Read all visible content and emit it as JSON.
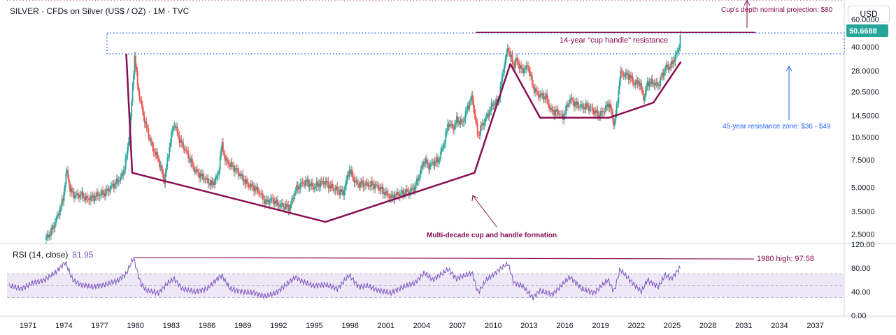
{
  "header": {
    "title": "SILVER · CFDs on Silver (US$ / OZ) · 1M · TVC",
    "currency_button": "USD"
  },
  "colors": {
    "up": "#26a69a",
    "down": "#ef5350",
    "pattern": "#880e4f",
    "zone": "#2962ff",
    "rsi": "#7e57c2",
    "rsi_band": "#ede7f6",
    "price_tag_bg": "#26a69a"
  },
  "chart_data": [
    {
      "type": "candlestick",
      "title": "SILVER · CFDs on Silver (US$ / OZ) · 1M · TVC",
      "scale": "log",
      "ylim": [
        2.2,
        75
      ],
      "xlim": [
        1969.3,
        2039.5
      ],
      "x_tick_labels": [
        "1971",
        "1974",
        "1977",
        "1980",
        "1983",
        "1986",
        "1989",
        "1992",
        "1995",
        "1998",
        "2001",
        "2004",
        "2007",
        "2010",
        "2013",
        "2016",
        "2019",
        "2022",
        "2025",
        "2028",
        "2031",
        "2034",
        "2037"
      ],
      "y_tick_labels": [
        "60.0000",
        "40.0000",
        "28.0000",
        "20.5000",
        "14.5000",
        "10.5000",
        "7.5000",
        "5.0000",
        "3.5000",
        "2.5000"
      ],
      "current_price": "50.6688",
      "price_path": [
        [
          1972.5,
          2.3
        ],
        [
          1973.0,
          2.6
        ],
        [
          1973.5,
          3.2
        ],
        [
          1974.0,
          4.2
        ],
        [
          1974.3,
          6.5
        ],
        [
          1974.6,
          4.8
        ],
        [
          1975.0,
          4.4
        ],
        [
          1975.5,
          4.5
        ],
        [
          1976.0,
          4.2
        ],
        [
          1976.5,
          4.3
        ],
        [
          1977.0,
          4.5
        ],
        [
          1977.5,
          4.6
        ],
        [
          1978.0,
          5.0
        ],
        [
          1978.5,
          5.4
        ],
        [
          1979.0,
          6.0
        ],
        [
          1979.4,
          8.5
        ],
        [
          1979.7,
          15.0
        ],
        [
          1980.0,
          35.0
        ],
        [
          1980.3,
          21.0
        ],
        [
          1980.7,
          15.0
        ],
        [
          1981.0,
          12.0
        ],
        [
          1981.5,
          9.0
        ],
        [
          1982.0,
          7.5
        ],
        [
          1982.5,
          5.5
        ],
        [
          1983.0,
          10.0
        ],
        [
          1983.3,
          13.0
        ],
        [
          1983.8,
          10.0
        ],
        [
          1984.5,
          8.0
        ],
        [
          1985.0,
          6.5
        ],
        [
          1985.5,
          6.0
        ],
        [
          1986.0,
          5.6
        ],
        [
          1986.5,
          5.2
        ],
        [
          1987.0,
          6.0
        ],
        [
          1987.3,
          9.5
        ],
        [
          1987.6,
          7.5
        ],
        [
          1988.0,
          7.0
        ],
        [
          1988.5,
          6.5
        ],
        [
          1989.0,
          5.8
        ],
        [
          1989.5,
          5.2
        ],
        [
          1990.0,
          5.0
        ],
        [
          1990.5,
          4.6
        ],
        [
          1991.0,
          4.0
        ],
        [
          1991.5,
          4.2
        ],
        [
          1992.0,
          3.9
        ],
        [
          1992.5,
          3.8
        ],
        [
          1993.0,
          3.7
        ],
        [
          1993.5,
          4.8
        ],
        [
          1994.0,
          5.3
        ],
        [
          1994.5,
          5.4
        ],
        [
          1995.0,
          5.0
        ],
        [
          1995.5,
          5.3
        ],
        [
          1996.0,
          5.4
        ],
        [
          1996.5,
          5.0
        ],
        [
          1997.0,
          4.8
        ],
        [
          1997.5,
          4.6
        ],
        [
          1998.0,
          6.5
        ],
        [
          1998.3,
          5.8
        ],
        [
          1998.7,
          5.2
        ],
        [
          1999.0,
          5.3
        ],
        [
          1999.5,
          5.2
        ],
        [
          2000.0,
          5.2
        ],
        [
          2000.5,
          5.0
        ],
        [
          2001.0,
          4.6
        ],
        [
          2001.5,
          4.3
        ],
        [
          2002.0,
          4.5
        ],
        [
          2002.5,
          4.6
        ],
        [
          2003.0,
          4.7
        ],
        [
          2003.5,
          5.0
        ],
        [
          2004.0,
          6.4
        ],
        [
          2004.3,
          7.5
        ],
        [
          2004.7,
          6.8
        ],
        [
          2005.0,
          7.2
        ],
        [
          2005.5,
          7.5
        ],
        [
          2006.0,
          10.0
        ],
        [
          2006.3,
          13.0
        ],
        [
          2006.7,
          12.0
        ],
        [
          2007.0,
          13.5
        ],
        [
          2007.5,
          13.0
        ],
        [
          2008.0,
          17.0
        ],
        [
          2008.3,
          19.0
        ],
        [
          2008.8,
          10.5
        ],
        [
          2009.0,
          12.0
        ],
        [
          2009.5,
          14.0
        ],
        [
          2010.0,
          17.0
        ],
        [
          2010.5,
          18.0
        ],
        [
          2010.9,
          28.0
        ],
        [
          2011.3,
          40.0
        ],
        [
          2011.5,
          35.0
        ],
        [
          2011.8,
          30.0
        ],
        [
          2012.0,
          33.0
        ],
        [
          2012.5,
          28.0
        ],
        [
          2013.0,
          30.0
        ],
        [
          2013.4,
          22.0
        ],
        [
          2013.8,
          20.0
        ],
        [
          2014.0,
          19.5
        ],
        [
          2014.5,
          19.0
        ],
        [
          2014.9,
          15.5
        ],
        [
          2015.5,
          15.2
        ],
        [
          2015.9,
          14.0
        ],
        [
          2016.5,
          18.5
        ],
        [
          2017.0,
          17.0
        ],
        [
          2017.5,
          16.5
        ],
        [
          2018.0,
          16.5
        ],
        [
          2018.5,
          15.5
        ],
        [
          2018.9,
          14.5
        ],
        [
          2019.5,
          16.0
        ],
        [
          2019.8,
          17.5
        ],
        [
          2020.2,
          12.5
        ],
        [
          2020.5,
          18.0
        ],
        [
          2020.7,
          27.0
        ],
        [
          2021.0,
          26.5
        ],
        [
          2021.5,
          26.0
        ],
        [
          2021.9,
          23.0
        ],
        [
          2022.3,
          24.0
        ],
        [
          2022.7,
          18.5
        ],
        [
          2023.0,
          23.5
        ],
        [
          2023.5,
          23.5
        ],
        [
          2023.9,
          22.5
        ],
        [
          2024.3,
          27.0
        ],
        [
          2024.6,
          30.0
        ],
        [
          2024.9,
          29.5
        ],
        [
          2025.2,
          33.0
        ],
        [
          2025.5,
          36.5
        ],
        [
          2025.7,
          42.0
        ],
        [
          2025.8,
          50.67
        ]
      ],
      "highlights": [
        {
          "label": "45-year resistance zone: $36 - $49",
          "y_range": [
            36,
            49
          ]
        },
        {
          "label": "14-year \"cup handle\" resistance",
          "y": 49.5
        },
        {
          "label": "Cup's depth nominal projection: $80",
          "y": 80
        },
        {
          "label": "Multi-decade cup and handle formation"
        }
      ],
      "cup_path": [
        [
          1979.3,
          36
        ],
        [
          1979.8,
          6.2
        ],
        [
          1996.0,
          3.0
        ],
        [
          2008.5,
          6.2
        ],
        [
          2011.5,
          31
        ],
        [
          2014.0,
          14.0
        ],
        [
          2019.8,
          14.0
        ],
        [
          2023.5,
          17.5
        ],
        [
          2025.8,
          32
        ]
      ]
    },
    {
      "type": "line",
      "title": "RSI (14, close)",
      "current_value": "81.95",
      "ylim": [
        0,
        120
      ],
      "y_tick_labels": [
        "120.00",
        "80.00",
        "40.00",
        "0.00"
      ],
      "band": [
        30,
        70
      ],
      "highlights": [
        {
          "label": "1980 high: 97.58",
          "value": 97.58
        }
      ],
      "rsi_points": [
        [
          1969.5,
          50
        ],
        [
          1970.5,
          45
        ],
        [
          1971.5,
          55
        ],
        [
          1972.5,
          60
        ],
        [
          1973.5,
          75
        ],
        [
          1974.2,
          90
        ],
        [
          1974.8,
          60
        ],
        [
          1975.5,
          52
        ],
        [
          1976.5,
          48
        ],
        [
          1977.5,
          52
        ],
        [
          1978.5,
          58
        ],
        [
          1979.3,
          70
        ],
        [
          1979.9,
          97.58
        ],
        [
          1980.5,
          55
        ],
        [
          1981.0,
          42
        ],
        [
          1982.0,
          38
        ],
        [
          1982.8,
          55
        ],
        [
          1983.3,
          62
        ],
        [
          1984.0,
          45
        ],
        [
          1985.0,
          40
        ],
        [
          1986.0,
          44
        ],
        [
          1987.3,
          68
        ],
        [
          1988.0,
          45
        ],
        [
          1989.0,
          40
        ],
        [
          1990.0,
          38
        ],
        [
          1991.0,
          32
        ],
        [
          1992.0,
          40
        ],
        [
          1993.5,
          65
        ],
        [
          1994.0,
          58
        ],
        [
          1995.0,
          50
        ],
        [
          1996.0,
          52
        ],
        [
          1997.0,
          45
        ],
        [
          1998.0,
          68
        ],
        [
          1998.8,
          48
        ],
        [
          1999.5,
          50
        ],
        [
          2000.5,
          42
        ],
        [
          2001.5,
          38
        ],
        [
          2002.5,
          48
        ],
        [
          2003.5,
          55
        ],
        [
          2004.3,
          72
        ],
        [
          2005.0,
          60
        ],
        [
          2006.3,
          78
        ],
        [
          2007.0,
          62
        ],
        [
          2008.3,
          72
        ],
        [
          2008.8,
          38
        ],
        [
          2009.5,
          60
        ],
        [
          2010.9,
          82
        ],
        [
          2011.3,
          88
        ],
        [
          2011.8,
          55
        ],
        [
          2012.5,
          50
        ],
        [
          2013.4,
          30
        ],
        [
          2014.0,
          42
        ],
        [
          2015.0,
          35
        ],
        [
          2016.5,
          65
        ],
        [
          2017.5,
          45
        ],
        [
          2018.5,
          38
        ],
        [
          2019.7,
          60
        ],
        [
          2020.2,
          40
        ],
        [
          2020.7,
          78
        ],
        [
          2021.5,
          60
        ],
        [
          2022.5,
          40
        ],
        [
          2023.0,
          60
        ],
        [
          2023.9,
          48
        ],
        [
          2024.5,
          68
        ],
        [
          2025.0,
          62
        ],
        [
          2025.8,
          81.95
        ]
      ]
    }
  ]
}
